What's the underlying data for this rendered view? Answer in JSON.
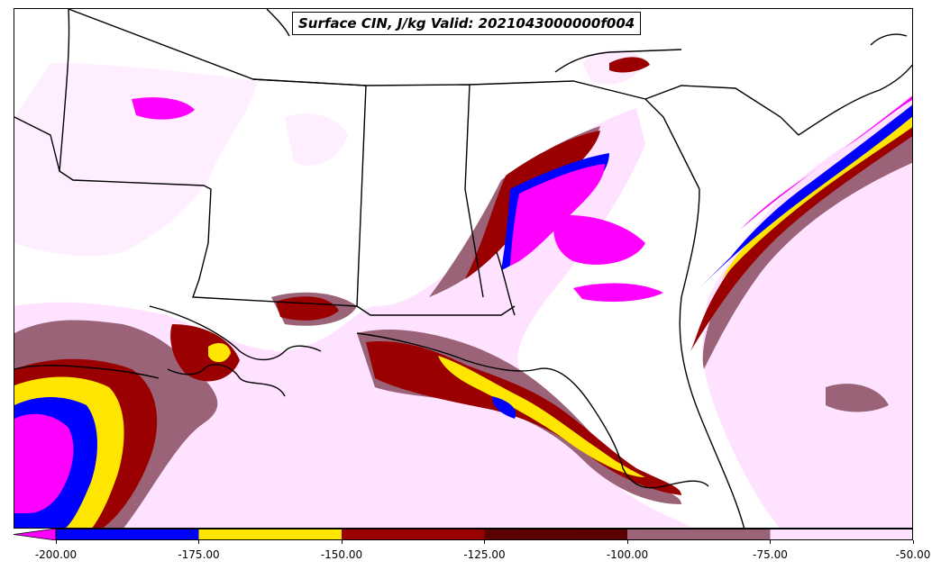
{
  "title": "Surface CIN, J/kg Valid: 2021043000000f004",
  "colors": {
    "lt_-200": "#ff00ff",
    "-200_-175": "#0000ff",
    "-175_-150": "#ffe600",
    "-150_-125": "#9b0000",
    "-125_-100": "#5a0000",
    "-100_-75": "#9a6378",
    "-75_-50": "#ffe2ff"
  },
  "colorbar": {
    "ticks": [
      "-200.00",
      "-175.00",
      "-150.00",
      "-125.00",
      "-100.00",
      "-75.00",
      "-50.00"
    ],
    "levels": [
      -200,
      -175,
      -150,
      -125,
      -100,
      -75,
      -50
    ],
    "extend": "min"
  }
}
